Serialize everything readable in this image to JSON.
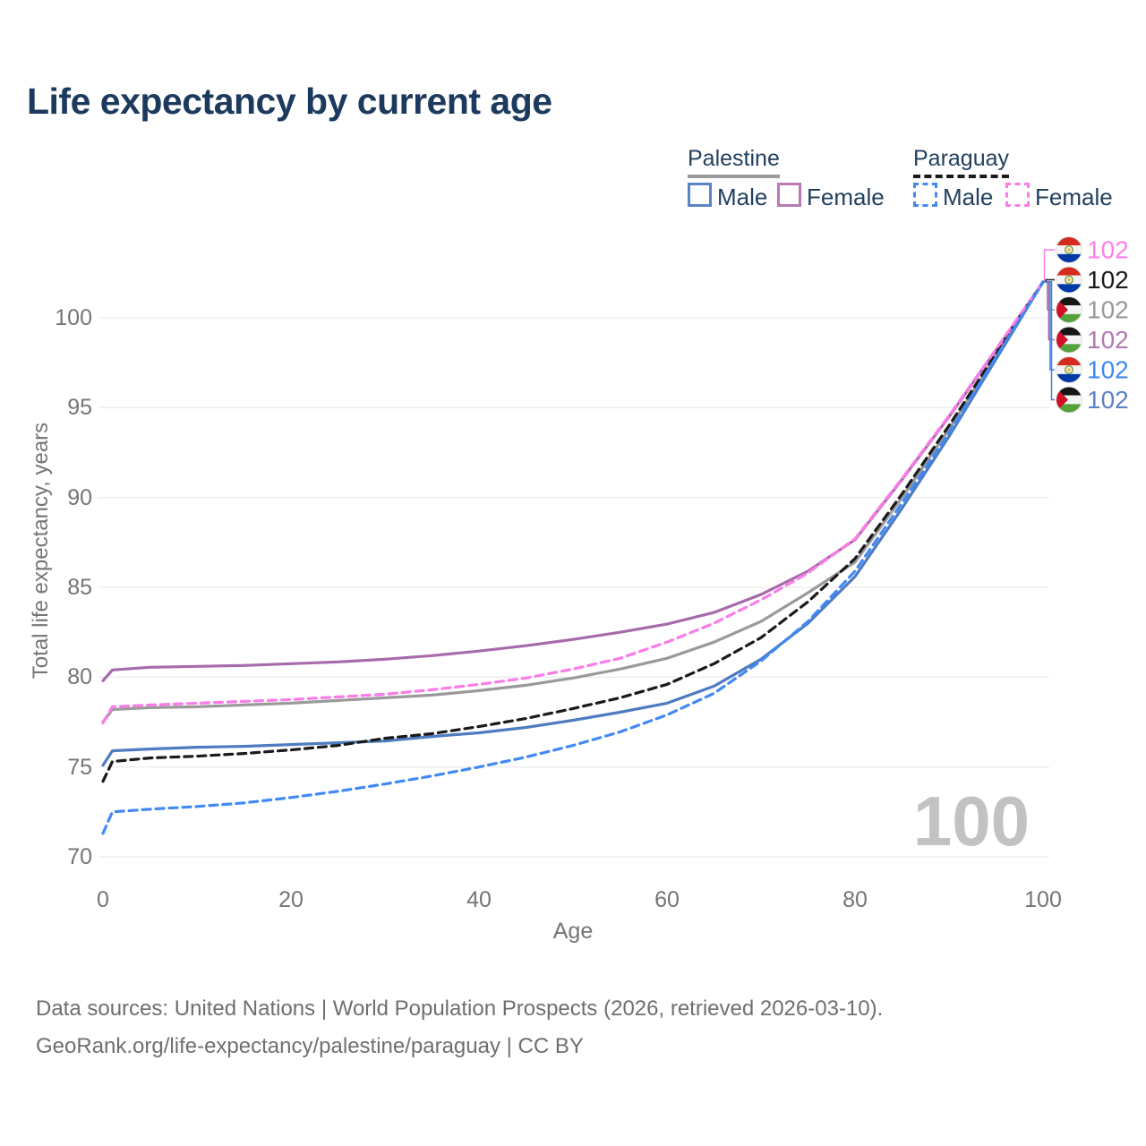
{
  "title": "Life expectancy by current age",
  "legend": {
    "groups": [
      {
        "label": "Palestine",
        "underline_style": "solid",
        "underline_color": "#9a9a9a",
        "items": [
          {
            "label": "Male",
            "color": "#5b84c4",
            "style": "solid"
          },
          {
            "label": "Female",
            "color": "#b879b4",
            "style": "solid"
          }
        ]
      },
      {
        "label": "Paraguay",
        "underline_style": "dashed",
        "underline_color": "#1a1a1a",
        "items": [
          {
            "label": "Male",
            "color": "#4189f5",
            "style": "dashed"
          },
          {
            "label": "Female",
            "color": "#fb7ce8",
            "style": "dashed"
          }
        ]
      }
    ]
  },
  "watermark": "100",
  "footer": {
    "line1": "Data sources: United Nations | World Population Prospects (2026, retrieved 2026-03-10).",
    "line2": "GeoRank.org/life-expectancy/palestine/paraguay | CC BY"
  },
  "chart_data": {
    "type": "line",
    "title": "Life expectancy by current age",
    "xlabel": "Age",
    "ylabel": "Total life expectancy, years",
    "x_ticks": [
      0,
      20,
      40,
      60,
      80,
      100
    ],
    "y_ticks": [
      70,
      75,
      80,
      85,
      90,
      95,
      100
    ],
    "xlim": [
      0,
      100
    ],
    "ylim": [
      69.5,
      103
    ],
    "grid": "horizontal",
    "legend_position": "top-right",
    "x": [
      0,
      1,
      5,
      10,
      15,
      20,
      25,
      30,
      35,
      40,
      45,
      50,
      55,
      60,
      65,
      70,
      75,
      80,
      85,
      90,
      95,
      100
    ],
    "series": [
      {
        "name": "Palestine",
        "sex": "Both",
        "style": "solid",
        "color": "#9a9a9a",
        "values": [
          77.5,
          78.2,
          78.3,
          78.35,
          78.45,
          78.55,
          78.7,
          78.85,
          79.0,
          79.25,
          79.55,
          79.95,
          80.45,
          81.05,
          81.95,
          83.1,
          84.7,
          86.4,
          90.0,
          93.8,
          97.9,
          102
        ]
      },
      {
        "name": "Palestine Female",
        "sex": "Female",
        "style": "solid",
        "color": "#a76aab",
        "values": [
          79.8,
          80.4,
          80.55,
          80.6,
          80.65,
          80.75,
          80.85,
          81.0,
          81.2,
          81.45,
          81.75,
          82.1,
          82.5,
          82.95,
          83.6,
          84.6,
          85.9,
          87.65,
          91.0,
          94.5,
          98.2,
          102
        ]
      },
      {
        "name": "Palestine Male",
        "sex": "Male",
        "style": "solid",
        "color": "#4e7cc0",
        "values": [
          75.1,
          75.9,
          76.0,
          76.1,
          76.15,
          76.25,
          76.35,
          76.45,
          76.7,
          76.9,
          77.2,
          77.6,
          78.05,
          78.55,
          79.5,
          81.0,
          83.0,
          85.6,
          89.4,
          93.4,
          97.7,
          102
        ]
      },
      {
        "name": "Paraguay",
        "sex": "Both",
        "style": "dashed",
        "color": "#1a1a1a",
        "values": [
          74.2,
          75.3,
          75.5,
          75.6,
          75.75,
          75.95,
          76.2,
          76.6,
          76.85,
          77.25,
          77.7,
          78.25,
          78.85,
          79.6,
          80.75,
          82.2,
          84.2,
          86.6,
          90.2,
          94.0,
          98.0,
          102
        ]
      },
      {
        "name": "Paraguay Female",
        "sex": "Female",
        "style": "dashed",
        "color": "#fb7ce8",
        "values": [
          77.45,
          78.35,
          78.45,
          78.55,
          78.65,
          78.75,
          78.9,
          79.05,
          79.3,
          79.6,
          79.95,
          80.45,
          81.05,
          81.95,
          83.0,
          84.3,
          85.8,
          87.7,
          91.05,
          94.55,
          98.25,
          102
        ]
      },
      {
        "name": "Paraguay Male",
        "sex": "Male",
        "style": "dashed",
        "color": "#4189f5",
        "values": [
          71.3,
          72.5,
          72.65,
          72.8,
          73.0,
          73.3,
          73.65,
          74.05,
          74.5,
          75.0,
          75.55,
          76.2,
          76.95,
          77.9,
          79.1,
          80.9,
          83.1,
          85.9,
          89.7,
          93.6,
          97.8,
          102
        ]
      }
    ],
    "end_labels": [
      {
        "value": "102",
        "series": "Paraguay Female",
        "flag": "paraguay",
        "label_color": "#ff80e8"
      },
      {
        "value": "102",
        "series": "Paraguay",
        "flag": "paraguay",
        "label_color": "#1a1a1a"
      },
      {
        "value": "102",
        "series": "Palestine",
        "flag": "palestine",
        "label_color": "#9a9a9a"
      },
      {
        "value": "102",
        "series": "Palestine Female",
        "flag": "palestine",
        "label_color": "#b279b2"
      },
      {
        "value": "102",
        "series": "Paraguay Male",
        "flag": "paraguay",
        "label_color": "#4189f5"
      },
      {
        "value": "102",
        "series": "Palestine Male",
        "flag": "palestine",
        "label_color": "#5b84c4"
      }
    ]
  }
}
